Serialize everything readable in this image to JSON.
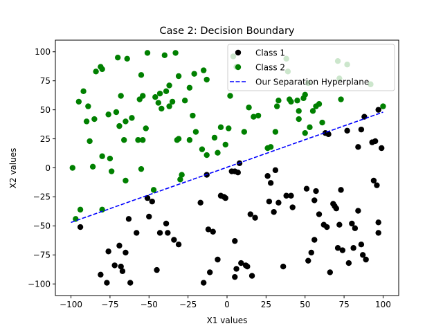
{
  "chart_data": {
    "type": "scatter",
    "title": "Case 2: Decision Boundary",
    "xlabel": "X1 values",
    "ylabel": "X2 values",
    "xlim": [
      -110,
      110
    ],
    "ylim": [
      -110,
      110
    ],
    "xticks": [
      -100,
      -75,
      -50,
      -25,
      0,
      25,
      50,
      75,
      100
    ],
    "yticks": [
      -100,
      -75,
      -50,
      -25,
      0,
      25,
      50,
      75,
      100
    ],
    "grid": false,
    "legend_position": "top-right",
    "series": [
      {
        "name": "Class 1",
        "kind": "scatter",
        "color": "#000000",
        "points": [
          [
            -94,
            -51
          ],
          [
            -81,
            -92
          ],
          [
            -77,
            -99
          ],
          [
            -76,
            -72
          ],
          [
            -72,
            -84
          ],
          [
            -69,
            -67
          ],
          [
            -68,
            -85
          ],
          [
            -67,
            -89
          ],
          [
            -65,
            -73
          ],
          [
            -63,
            -44
          ],
          [
            -62,
            -99
          ],
          [
            -58,
            -56
          ],
          [
            -51,
            -26
          ],
          [
            -50,
            -42
          ],
          [
            -48,
            -29
          ],
          [
            -45,
            -88
          ],
          [
            -43,
            -56
          ],
          [
            -39,
            -48
          ],
          [
            -38,
            -56
          ],
          [
            -34,
            -62
          ],
          [
            -31,
            -66
          ],
          [
            -17,
            -30
          ],
          [
            -15,
            -99
          ],
          [
            -13,
            -6
          ],
          [
            -12,
            -53
          ],
          [
            -11,
            -90
          ],
          [
            -9,
            -55
          ],
          [
            -6,
            -79
          ],
          [
            -4,
            -24
          ],
          [
            -2,
            -25
          ],
          [
            -1,
            -26
          ],
          [
            3,
            -3
          ],
          [
            5,
            -3
          ],
          [
            5,
            -63
          ],
          [
            5,
            -94
          ],
          [
            6,
            -87
          ],
          [
            7,
            -4
          ],
          [
            8,
            4
          ],
          [
            9,
            -82
          ],
          [
            12,
            -84
          ],
          [
            13,
            -85
          ],
          [
            15,
            -40
          ],
          [
            16,
            -93
          ],
          [
            18,
            -43
          ],
          [
            26,
            -7
          ],
          [
            27,
            -29
          ],
          [
            28,
            -13
          ],
          [
            30,
            -38
          ],
          [
            31,
            -2
          ],
          [
            33,
            -30
          ],
          [
            36,
            -85
          ],
          [
            38,
            -24
          ],
          [
            41,
            -24
          ],
          [
            42,
            -34
          ],
          [
            51,
            -18
          ],
          [
            52,
            -80
          ],
          [
            54,
            -73
          ],
          [
            56,
            -28
          ],
          [
            56,
            -62
          ],
          [
            57,
            -20
          ],
          [
            59,
            -40
          ],
          [
            62,
            -49
          ],
          [
            63,
            30
          ],
          [
            64,
            -51
          ],
          [
            65,
            29
          ],
          [
            66,
            -90
          ],
          [
            68,
            -31
          ],
          [
            69,
            -33
          ],
          [
            70,
            -35
          ],
          [
            71,
            -69
          ],
          [
            72,
            -49
          ],
          [
            73,
            -19
          ],
          [
            74,
            -71
          ],
          [
            77,
            32
          ],
          [
            78,
            -82
          ],
          [
            80,
            -48
          ],
          [
            81,
            -69
          ],
          [
            82,
            -52
          ],
          [
            84,
            18
          ],
          [
            84,
            -37
          ],
          [
            86,
            33
          ],
          [
            86,
            -66
          ],
          [
            87,
            -75
          ],
          [
            88,
            44
          ],
          [
            89,
            -79
          ],
          [
            93,
            22
          ],
          [
            94,
            -11
          ],
          [
            95,
            23
          ],
          [
            96,
            -15
          ],
          [
            97,
            -56
          ],
          [
            97,
            -47
          ],
          [
            97,
            50
          ],
          [
            99,
            17
          ]
        ]
      },
      {
        "name": "Class 2",
        "kind": "scatter",
        "color": "#008000",
        "points": [
          [
            -99,
            0
          ],
          [
            -97,
            -44
          ],
          [
            -95,
            57
          ],
          [
            -94,
            -36
          ],
          [
            -92,
            66
          ],
          [
            -90,
            40
          ],
          [
            -89,
            53
          ],
          [
            -88,
            23
          ],
          [
            -86,
            1
          ],
          [
            -85,
            42
          ],
          [
            -84,
            83
          ],
          [
            -81,
            87
          ],
          [
            -80,
            10
          ],
          [
            -80,
            85
          ],
          [
            -80,
            -36
          ],
          [
            -76,
            46
          ],
          [
            -75,
            8
          ],
          [
            -74,
            -3
          ],
          [
            -71,
            48
          ],
          [
            -70,
            95
          ],
          [
            -69,
            36
          ],
          [
            -68,
            62
          ],
          [
            -66,
            24
          ],
          [
            -65,
            -11
          ],
          [
            -65,
            40
          ],
          [
            -64,
            94
          ],
          [
            -61,
            43
          ],
          [
            -57,
            24
          ],
          [
            -56,
            59
          ],
          [
            -55,
            -1
          ],
          [
            -55,
            80
          ],
          [
            -54,
            62
          ],
          [
            -54,
            24
          ],
          [
            -52,
            34
          ],
          [
            -51,
            99
          ],
          [
            -47,
            -19
          ],
          [
            -46,
            61
          ],
          [
            -44,
            56
          ],
          [
            -43,
            64
          ],
          [
            -42,
            51
          ],
          [
            -40,
            97
          ],
          [
            -39,
            66
          ],
          [
            -37,
            71
          ],
          [
            -37,
            53
          ],
          [
            -35,
            57
          ],
          [
            -33,
            99
          ],
          [
            -32,
            24
          ],
          [
            -31,
            25
          ],
          [
            -31,
            79
          ],
          [
            -30,
            -10
          ],
          [
            -29,
            -6
          ],
          [
            -27,
            58
          ],
          [
            -24,
            69
          ],
          [
            -24,
            24
          ],
          [
            -22,
            45
          ],
          [
            -21,
            81
          ],
          [
            -20,
            31
          ],
          [
            -16,
            16
          ],
          [
            -15,
            84
          ],
          [
            -13,
            11
          ],
          [
            -13,
            76
          ],
          [
            -8,
            26
          ],
          [
            -6,
            13
          ],
          [
            -4,
            35
          ],
          [
            -1,
            20
          ],
          [
            1,
            34
          ],
          [
            2,
            62
          ],
          [
            4,
            96
          ],
          [
            6,
            87
          ],
          [
            11,
            31
          ],
          [
            14,
            52
          ],
          [
            17,
            44
          ],
          [
            20,
            45
          ],
          [
            26,
            17
          ],
          [
            28,
            18
          ],
          [
            31,
            31
          ],
          [
            32,
            53
          ],
          [
            33,
            58
          ],
          [
            38,
            94
          ],
          [
            39,
            83
          ],
          [
            40,
            59
          ],
          [
            41,
            57
          ],
          [
            45,
            58
          ],
          [
            46,
            42
          ],
          [
            46,
            49
          ],
          [
            49,
            60
          ],
          [
            50,
            30
          ],
          [
            50,
            63
          ],
          [
            52,
            73
          ],
          [
            53,
            35
          ],
          [
            55,
            49
          ],
          [
            57,
            53
          ],
          [
            59,
            55
          ],
          [
            61,
            39
          ],
          [
            71,
            92
          ],
          [
            72,
            77
          ],
          [
            73,
            59
          ],
          [
            77,
            89
          ],
          [
            92,
            72
          ],
          [
            100,
            53
          ]
        ]
      },
      {
        "name": "Our Separation Hyperplane",
        "kind": "line",
        "color": "#0000ff",
        "line_style": "dashed",
        "x": [
          -100,
          100
        ],
        "y": [
          -47,
          48
        ]
      }
    ]
  }
}
